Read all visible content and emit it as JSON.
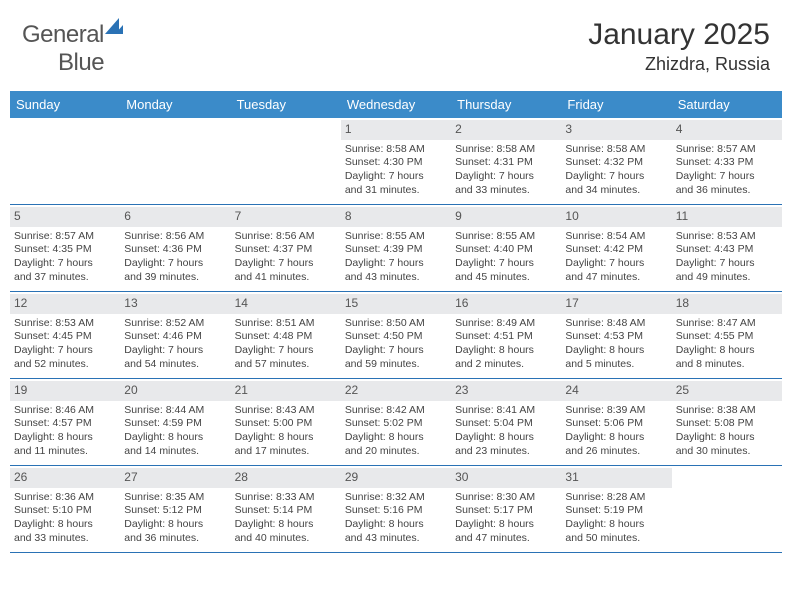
{
  "logo": {
    "part1": "General",
    "part2": "Blue"
  },
  "title": "January 2025",
  "location": "Zhizdra, Russia",
  "colors": {
    "header_bg": "#3b8bc9",
    "divider": "#2a72b5",
    "daynum_bg": "#e8e9eb",
    "text": "#333333"
  },
  "day_headers": [
    "Sunday",
    "Monday",
    "Tuesday",
    "Wednesday",
    "Thursday",
    "Friday",
    "Saturday"
  ],
  "weeks": [
    [
      {
        "day": "",
        "sunrise": "",
        "sunset": "",
        "daylight1": "",
        "daylight2": ""
      },
      {
        "day": "",
        "sunrise": "",
        "sunset": "",
        "daylight1": "",
        "daylight2": ""
      },
      {
        "day": "",
        "sunrise": "",
        "sunset": "",
        "daylight1": "",
        "daylight2": ""
      },
      {
        "day": "1",
        "sunrise": "Sunrise: 8:58 AM",
        "sunset": "Sunset: 4:30 PM",
        "daylight1": "Daylight: 7 hours",
        "daylight2": "and 31 minutes."
      },
      {
        "day": "2",
        "sunrise": "Sunrise: 8:58 AM",
        "sunset": "Sunset: 4:31 PM",
        "daylight1": "Daylight: 7 hours",
        "daylight2": "and 33 minutes."
      },
      {
        "day": "3",
        "sunrise": "Sunrise: 8:58 AM",
        "sunset": "Sunset: 4:32 PM",
        "daylight1": "Daylight: 7 hours",
        "daylight2": "and 34 minutes."
      },
      {
        "day": "4",
        "sunrise": "Sunrise: 8:57 AM",
        "sunset": "Sunset: 4:33 PM",
        "daylight1": "Daylight: 7 hours",
        "daylight2": "and 36 minutes."
      }
    ],
    [
      {
        "day": "5",
        "sunrise": "Sunrise: 8:57 AM",
        "sunset": "Sunset: 4:35 PM",
        "daylight1": "Daylight: 7 hours",
        "daylight2": "and 37 minutes."
      },
      {
        "day": "6",
        "sunrise": "Sunrise: 8:56 AM",
        "sunset": "Sunset: 4:36 PM",
        "daylight1": "Daylight: 7 hours",
        "daylight2": "and 39 minutes."
      },
      {
        "day": "7",
        "sunrise": "Sunrise: 8:56 AM",
        "sunset": "Sunset: 4:37 PM",
        "daylight1": "Daylight: 7 hours",
        "daylight2": "and 41 minutes."
      },
      {
        "day": "8",
        "sunrise": "Sunrise: 8:55 AM",
        "sunset": "Sunset: 4:39 PM",
        "daylight1": "Daylight: 7 hours",
        "daylight2": "and 43 minutes."
      },
      {
        "day": "9",
        "sunrise": "Sunrise: 8:55 AM",
        "sunset": "Sunset: 4:40 PM",
        "daylight1": "Daylight: 7 hours",
        "daylight2": "and 45 minutes."
      },
      {
        "day": "10",
        "sunrise": "Sunrise: 8:54 AM",
        "sunset": "Sunset: 4:42 PM",
        "daylight1": "Daylight: 7 hours",
        "daylight2": "and 47 minutes."
      },
      {
        "day": "11",
        "sunrise": "Sunrise: 8:53 AM",
        "sunset": "Sunset: 4:43 PM",
        "daylight1": "Daylight: 7 hours",
        "daylight2": "and 49 minutes."
      }
    ],
    [
      {
        "day": "12",
        "sunrise": "Sunrise: 8:53 AM",
        "sunset": "Sunset: 4:45 PM",
        "daylight1": "Daylight: 7 hours",
        "daylight2": "and 52 minutes."
      },
      {
        "day": "13",
        "sunrise": "Sunrise: 8:52 AM",
        "sunset": "Sunset: 4:46 PM",
        "daylight1": "Daylight: 7 hours",
        "daylight2": "and 54 minutes."
      },
      {
        "day": "14",
        "sunrise": "Sunrise: 8:51 AM",
        "sunset": "Sunset: 4:48 PM",
        "daylight1": "Daylight: 7 hours",
        "daylight2": "and 57 minutes."
      },
      {
        "day": "15",
        "sunrise": "Sunrise: 8:50 AM",
        "sunset": "Sunset: 4:50 PM",
        "daylight1": "Daylight: 7 hours",
        "daylight2": "and 59 minutes."
      },
      {
        "day": "16",
        "sunrise": "Sunrise: 8:49 AM",
        "sunset": "Sunset: 4:51 PM",
        "daylight1": "Daylight: 8 hours",
        "daylight2": "and 2 minutes."
      },
      {
        "day": "17",
        "sunrise": "Sunrise: 8:48 AM",
        "sunset": "Sunset: 4:53 PM",
        "daylight1": "Daylight: 8 hours",
        "daylight2": "and 5 minutes."
      },
      {
        "day": "18",
        "sunrise": "Sunrise: 8:47 AM",
        "sunset": "Sunset: 4:55 PM",
        "daylight1": "Daylight: 8 hours",
        "daylight2": "and 8 minutes."
      }
    ],
    [
      {
        "day": "19",
        "sunrise": "Sunrise: 8:46 AM",
        "sunset": "Sunset: 4:57 PM",
        "daylight1": "Daylight: 8 hours",
        "daylight2": "and 11 minutes."
      },
      {
        "day": "20",
        "sunrise": "Sunrise: 8:44 AM",
        "sunset": "Sunset: 4:59 PM",
        "daylight1": "Daylight: 8 hours",
        "daylight2": "and 14 minutes."
      },
      {
        "day": "21",
        "sunrise": "Sunrise: 8:43 AM",
        "sunset": "Sunset: 5:00 PM",
        "daylight1": "Daylight: 8 hours",
        "daylight2": "and 17 minutes."
      },
      {
        "day": "22",
        "sunrise": "Sunrise: 8:42 AM",
        "sunset": "Sunset: 5:02 PM",
        "daylight1": "Daylight: 8 hours",
        "daylight2": "and 20 minutes."
      },
      {
        "day": "23",
        "sunrise": "Sunrise: 8:41 AM",
        "sunset": "Sunset: 5:04 PM",
        "daylight1": "Daylight: 8 hours",
        "daylight2": "and 23 minutes."
      },
      {
        "day": "24",
        "sunrise": "Sunrise: 8:39 AM",
        "sunset": "Sunset: 5:06 PM",
        "daylight1": "Daylight: 8 hours",
        "daylight2": "and 26 minutes."
      },
      {
        "day": "25",
        "sunrise": "Sunrise: 8:38 AM",
        "sunset": "Sunset: 5:08 PM",
        "daylight1": "Daylight: 8 hours",
        "daylight2": "and 30 minutes."
      }
    ],
    [
      {
        "day": "26",
        "sunrise": "Sunrise: 8:36 AM",
        "sunset": "Sunset: 5:10 PM",
        "daylight1": "Daylight: 8 hours",
        "daylight2": "and 33 minutes."
      },
      {
        "day": "27",
        "sunrise": "Sunrise: 8:35 AM",
        "sunset": "Sunset: 5:12 PM",
        "daylight1": "Daylight: 8 hours",
        "daylight2": "and 36 minutes."
      },
      {
        "day": "28",
        "sunrise": "Sunrise: 8:33 AM",
        "sunset": "Sunset: 5:14 PM",
        "daylight1": "Daylight: 8 hours",
        "daylight2": "and 40 minutes."
      },
      {
        "day": "29",
        "sunrise": "Sunrise: 8:32 AM",
        "sunset": "Sunset: 5:16 PM",
        "daylight1": "Daylight: 8 hours",
        "daylight2": "and 43 minutes."
      },
      {
        "day": "30",
        "sunrise": "Sunrise: 8:30 AM",
        "sunset": "Sunset: 5:17 PM",
        "daylight1": "Daylight: 8 hours",
        "daylight2": "and 47 minutes."
      },
      {
        "day": "31",
        "sunrise": "Sunrise: 8:28 AM",
        "sunset": "Sunset: 5:19 PM",
        "daylight1": "Daylight: 8 hours",
        "daylight2": "and 50 minutes."
      },
      {
        "day": "",
        "sunrise": "",
        "sunset": "",
        "daylight1": "",
        "daylight2": ""
      }
    ]
  ]
}
